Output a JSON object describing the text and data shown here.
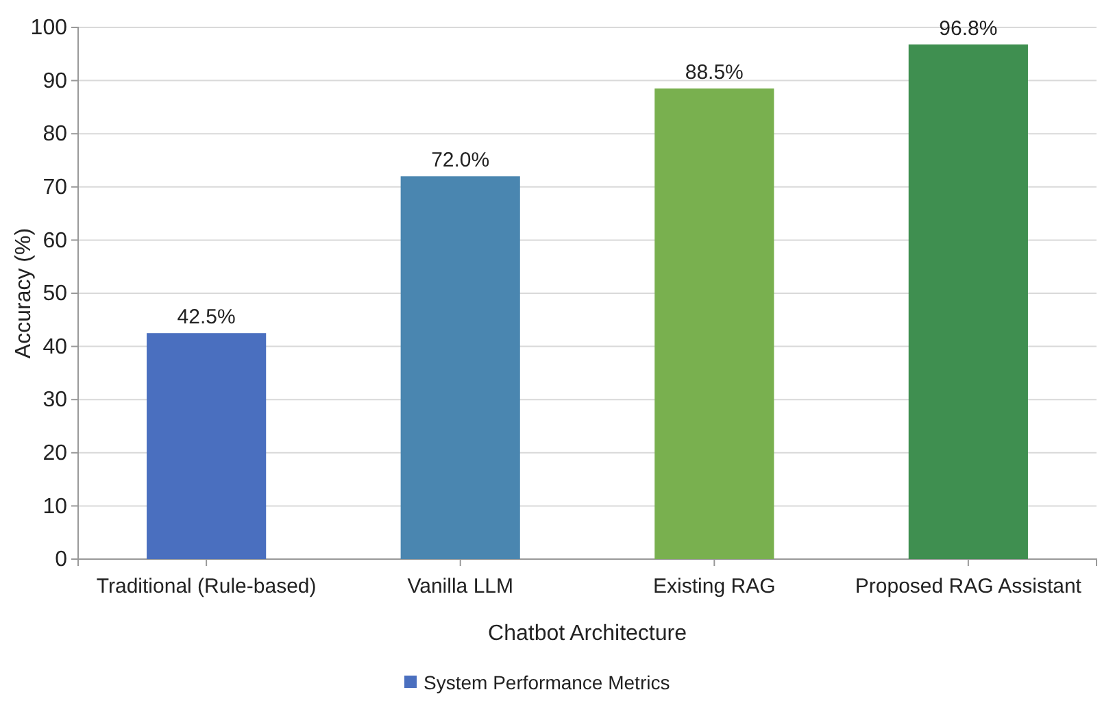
{
  "chart_data": {
    "type": "bar",
    "xlabel": "Chatbot Architecture",
    "ylabel": "Accuracy (%)",
    "categories": [
      "Traditional (Rule-based)",
      "Vanilla LLM",
      "Existing RAG",
      "Proposed RAG Assistant"
    ],
    "series": [
      {
        "name": "System Performance Metrics",
        "color": "#4a6fbf",
        "colors": [
          "#4a6fbf",
          "#4a86b0",
          "#79b04f",
          "#3f8f50"
        ],
        "values": [
          42.5,
          72.0,
          88.5,
          96.8
        ],
        "value_labels": [
          "42.5%",
          "72.0%",
          "88.5%",
          "96.8%"
        ]
      }
    ],
    "ylim": [
      0,
      100
    ],
    "yticks": [
      0,
      10,
      20,
      30,
      40,
      50,
      60,
      70,
      80,
      90,
      100
    ],
    "grid": "y",
    "legend": "bottom"
  }
}
